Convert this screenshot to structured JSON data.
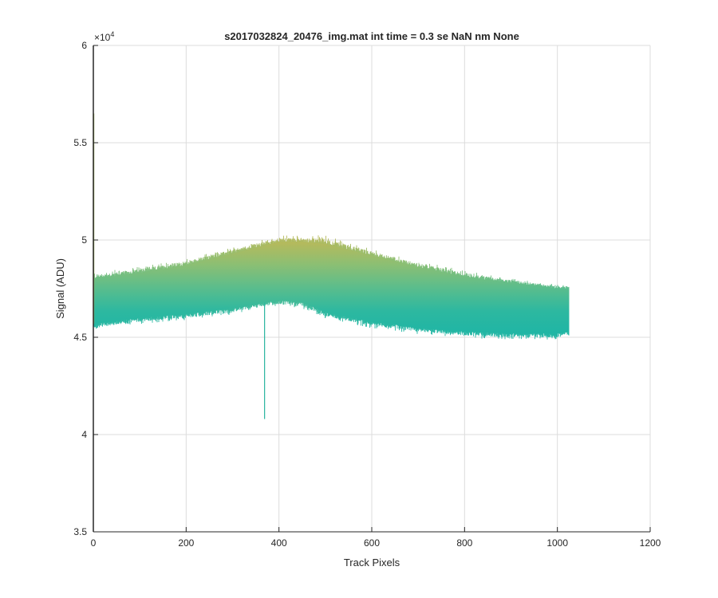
{
  "figure": {
    "title": "s2017032824_20476_img.mat int time = 0.3 se  NaN nm None",
    "exponent_base": "×10",
    "exponent_power": "4"
  },
  "chart_data": {
    "type": "line",
    "title": "s2017032824_20476_img.mat int time = 0.3 se  NaN nm None",
    "xlabel": "Track Pixels",
    "ylabel": "Signal (ADU)",
    "xlim": [
      0,
      1200
    ],
    "ylim": [
      35000,
      60000
    ],
    "y_scale_factor": 10000,
    "grid": true,
    "xticks": [
      0,
      200,
      400,
      600,
      800,
      1000,
      1200
    ],
    "yticks": [
      35000,
      40000,
      45000,
      50000,
      55000,
      60000
    ],
    "ytick_labels": [
      "3.5",
      "4",
      "4.5",
      "5",
      "5.5",
      "6"
    ],
    "xtick_labels": [
      "0",
      "200",
      "400",
      "600",
      "800",
      "1000",
      "1200"
    ],
    "series_count": 256,
    "colormap": [
      "#1fb5a5",
      "#2db8a0",
      "#5bbd8c",
      "#8cbf73",
      "#b8b95a"
    ],
    "band": {
      "x": [
        1,
        100,
        200,
        300,
        350,
        400,
        450,
        500,
        600,
        700,
        800,
        900,
        1000,
        1024
      ],
      "upper": [
        48300,
        48600,
        49000,
        49600,
        49900,
        50200,
        50200,
        50200,
        49500,
        48900,
        48400,
        48000,
        47700,
        47700
      ],
      "lower": [
        45400,
        45700,
        45900,
        46200,
        46500,
        46600,
        46500,
        46000,
        45500,
        45200,
        45000,
        44900,
        44900,
        45000
      ],
      "core_high": [
        48000,
        48300,
        48700,
        49300,
        49600,
        49900,
        49900,
        49800,
        49200,
        48600,
        48100,
        47800,
        47500,
        47500
      ],
      "core_low": [
        45700,
        46000,
        46200,
        46500,
        46700,
        46900,
        46800,
        46300,
        45800,
        45500,
        45300,
        45200,
        45200,
        45300
      ]
    },
    "spikes": [
      {
        "x": 1,
        "y": 56500
      },
      {
        "x": 369,
        "y": 40800
      }
    ]
  }
}
